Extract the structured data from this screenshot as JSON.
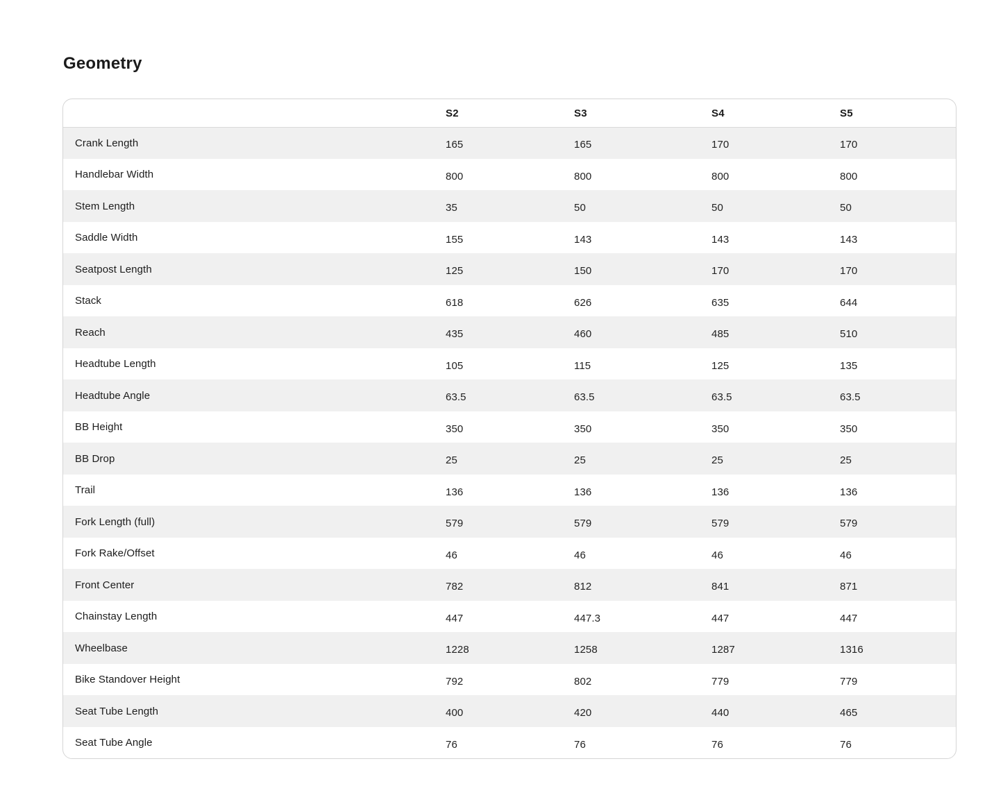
{
  "page": {
    "title": "Geometry"
  },
  "colors": {
    "row_alt_bg": "#f0f0f0",
    "card_border": "#d5d5d5",
    "text": "#1c1c1c"
  },
  "table": {
    "columns": [
      "S2",
      "S3",
      "S4",
      "S5"
    ],
    "rows": [
      {
        "label": "Crank Length",
        "values": [
          "165",
          "165",
          "170",
          "170"
        ]
      },
      {
        "label": "Handlebar Width",
        "values": [
          "800",
          "800",
          "800",
          "800"
        ]
      },
      {
        "label": "Stem Length",
        "values": [
          "35",
          "50",
          "50",
          "50"
        ]
      },
      {
        "label": "Saddle Width",
        "values": [
          "155",
          "143",
          "143",
          "143"
        ]
      },
      {
        "label": "Seatpost Length",
        "values": [
          "125",
          "150",
          "170",
          "170"
        ]
      },
      {
        "label": "Stack",
        "values": [
          "618",
          "626",
          "635",
          "644"
        ]
      },
      {
        "label": "Reach",
        "values": [
          "435",
          "460",
          "485",
          "510"
        ]
      },
      {
        "label": "Headtube Length",
        "values": [
          "105",
          "115",
          "125",
          "135"
        ]
      },
      {
        "label": "Headtube Angle",
        "values": [
          "63.5",
          "63.5",
          "63.5",
          "63.5"
        ]
      },
      {
        "label": "BB Height",
        "values": [
          "350",
          "350",
          "350",
          "350"
        ]
      },
      {
        "label": "BB Drop",
        "values": [
          "25",
          "25",
          "25",
          "25"
        ]
      },
      {
        "label": "Trail",
        "values": [
          "136",
          "136",
          "136",
          "136"
        ]
      },
      {
        "label": "Fork Length (full)",
        "values": [
          "579",
          "579",
          "579",
          "579"
        ]
      },
      {
        "label": "Fork Rake/Offset",
        "values": [
          "46",
          "46",
          "46",
          "46"
        ]
      },
      {
        "label": "Front Center",
        "values": [
          "782",
          "812",
          "841",
          "871"
        ]
      },
      {
        "label": "Chainstay Length",
        "values": [
          "447",
          "447.3",
          "447",
          "447"
        ]
      },
      {
        "label": "Wheelbase",
        "values": [
          "1228",
          "1258",
          "1287",
          "1316"
        ]
      },
      {
        "label": "Bike Standover Height",
        "values": [
          "792",
          "802",
          "779",
          "779"
        ]
      },
      {
        "label": "Seat Tube Length",
        "values": [
          "400",
          "420",
          "440",
          "465"
        ]
      },
      {
        "label": "Seat Tube Angle",
        "values": [
          "76",
          "76",
          "76",
          "76"
        ]
      }
    ]
  }
}
